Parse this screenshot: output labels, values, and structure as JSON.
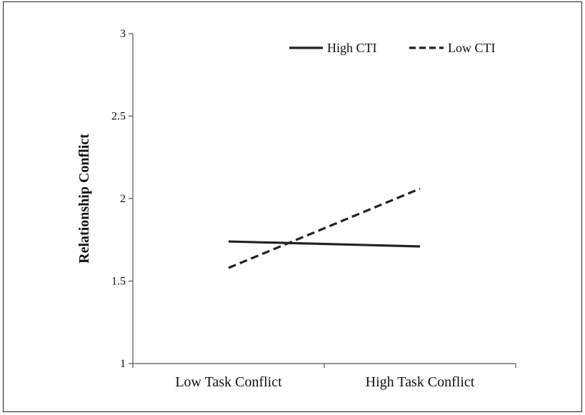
{
  "chart_data": {
    "type": "line",
    "title": "",
    "xlabel": "",
    "ylabel": "Relationship Conflict",
    "categories": [
      "Low Task Conflict",
      "High Task Conflict"
    ],
    "ylim": [
      1,
      3
    ],
    "yticks": [
      1,
      1.5,
      2,
      2.5,
      3
    ],
    "ytick_labels": [
      "1",
      "1.5",
      "2",
      "2.5",
      "3"
    ],
    "grid": false,
    "legend_position": "top-right",
    "series": [
      {
        "name": "High CTI",
        "values": [
          1.74,
          1.71
        ],
        "style": "solid",
        "color": "#222222"
      },
      {
        "name": "Low CTI",
        "values": [
          1.58,
          2.06
        ],
        "style": "dashed",
        "color": "#222222"
      }
    ]
  }
}
